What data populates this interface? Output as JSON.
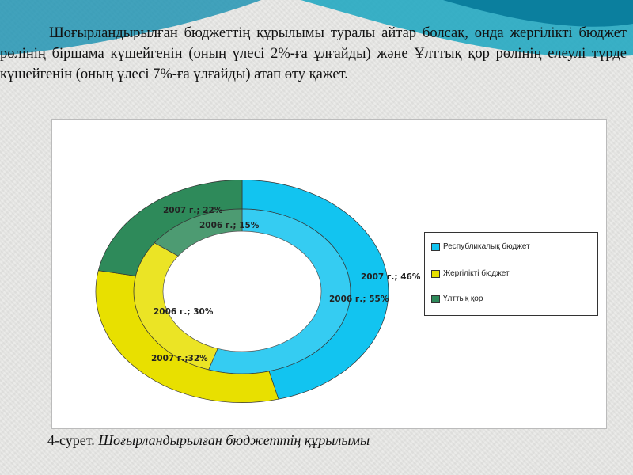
{
  "paragraph": "Шоғырландырылған бюджеттің құрылымы туралы айтар болсақ, онда жергілікті бюджет рөлінің біршама күшейгенін (оның үлесі 2%-ға ұлғайды) және Ұлттық қор рөлінің елеулі түрде күшейгенін (оның үлесі 7%-ға ұлғайды) атап өту қажет.",
  "caption": {
    "prefix": "4-сурет. ",
    "title": "Шоғырландырылған бюджеттің құрылымы"
  },
  "chart_data": {
    "type": "doughnut",
    "categories": [
      "Республикалық бюджет",
      "Жергілікті бюджет",
      "Ұлттық қор"
    ],
    "colors": [
      "#12c4f0",
      "#e8e000",
      "#2e8a5a"
    ],
    "series": [
      {
        "name": "2006 г.",
        "ring": "inner",
        "values": [
          55,
          30,
          15
        ],
        "labels": [
          "2006 г.; 55%",
          "2006 г.; 30%",
          "2006 г.; 15%"
        ]
      },
      {
        "name": "2007 г.",
        "ring": "outer",
        "values": [
          46,
          32,
          22
        ],
        "labels": [
          "2007 г.; 46%",
          "2007 г.;32%",
          "2007 г.; 22%"
        ]
      }
    ],
    "legend": {
      "position": "right",
      "items": [
        "Республикалық бюджет",
        "Жергілікті бюджет",
        "Ұлттық қор"
      ]
    }
  }
}
